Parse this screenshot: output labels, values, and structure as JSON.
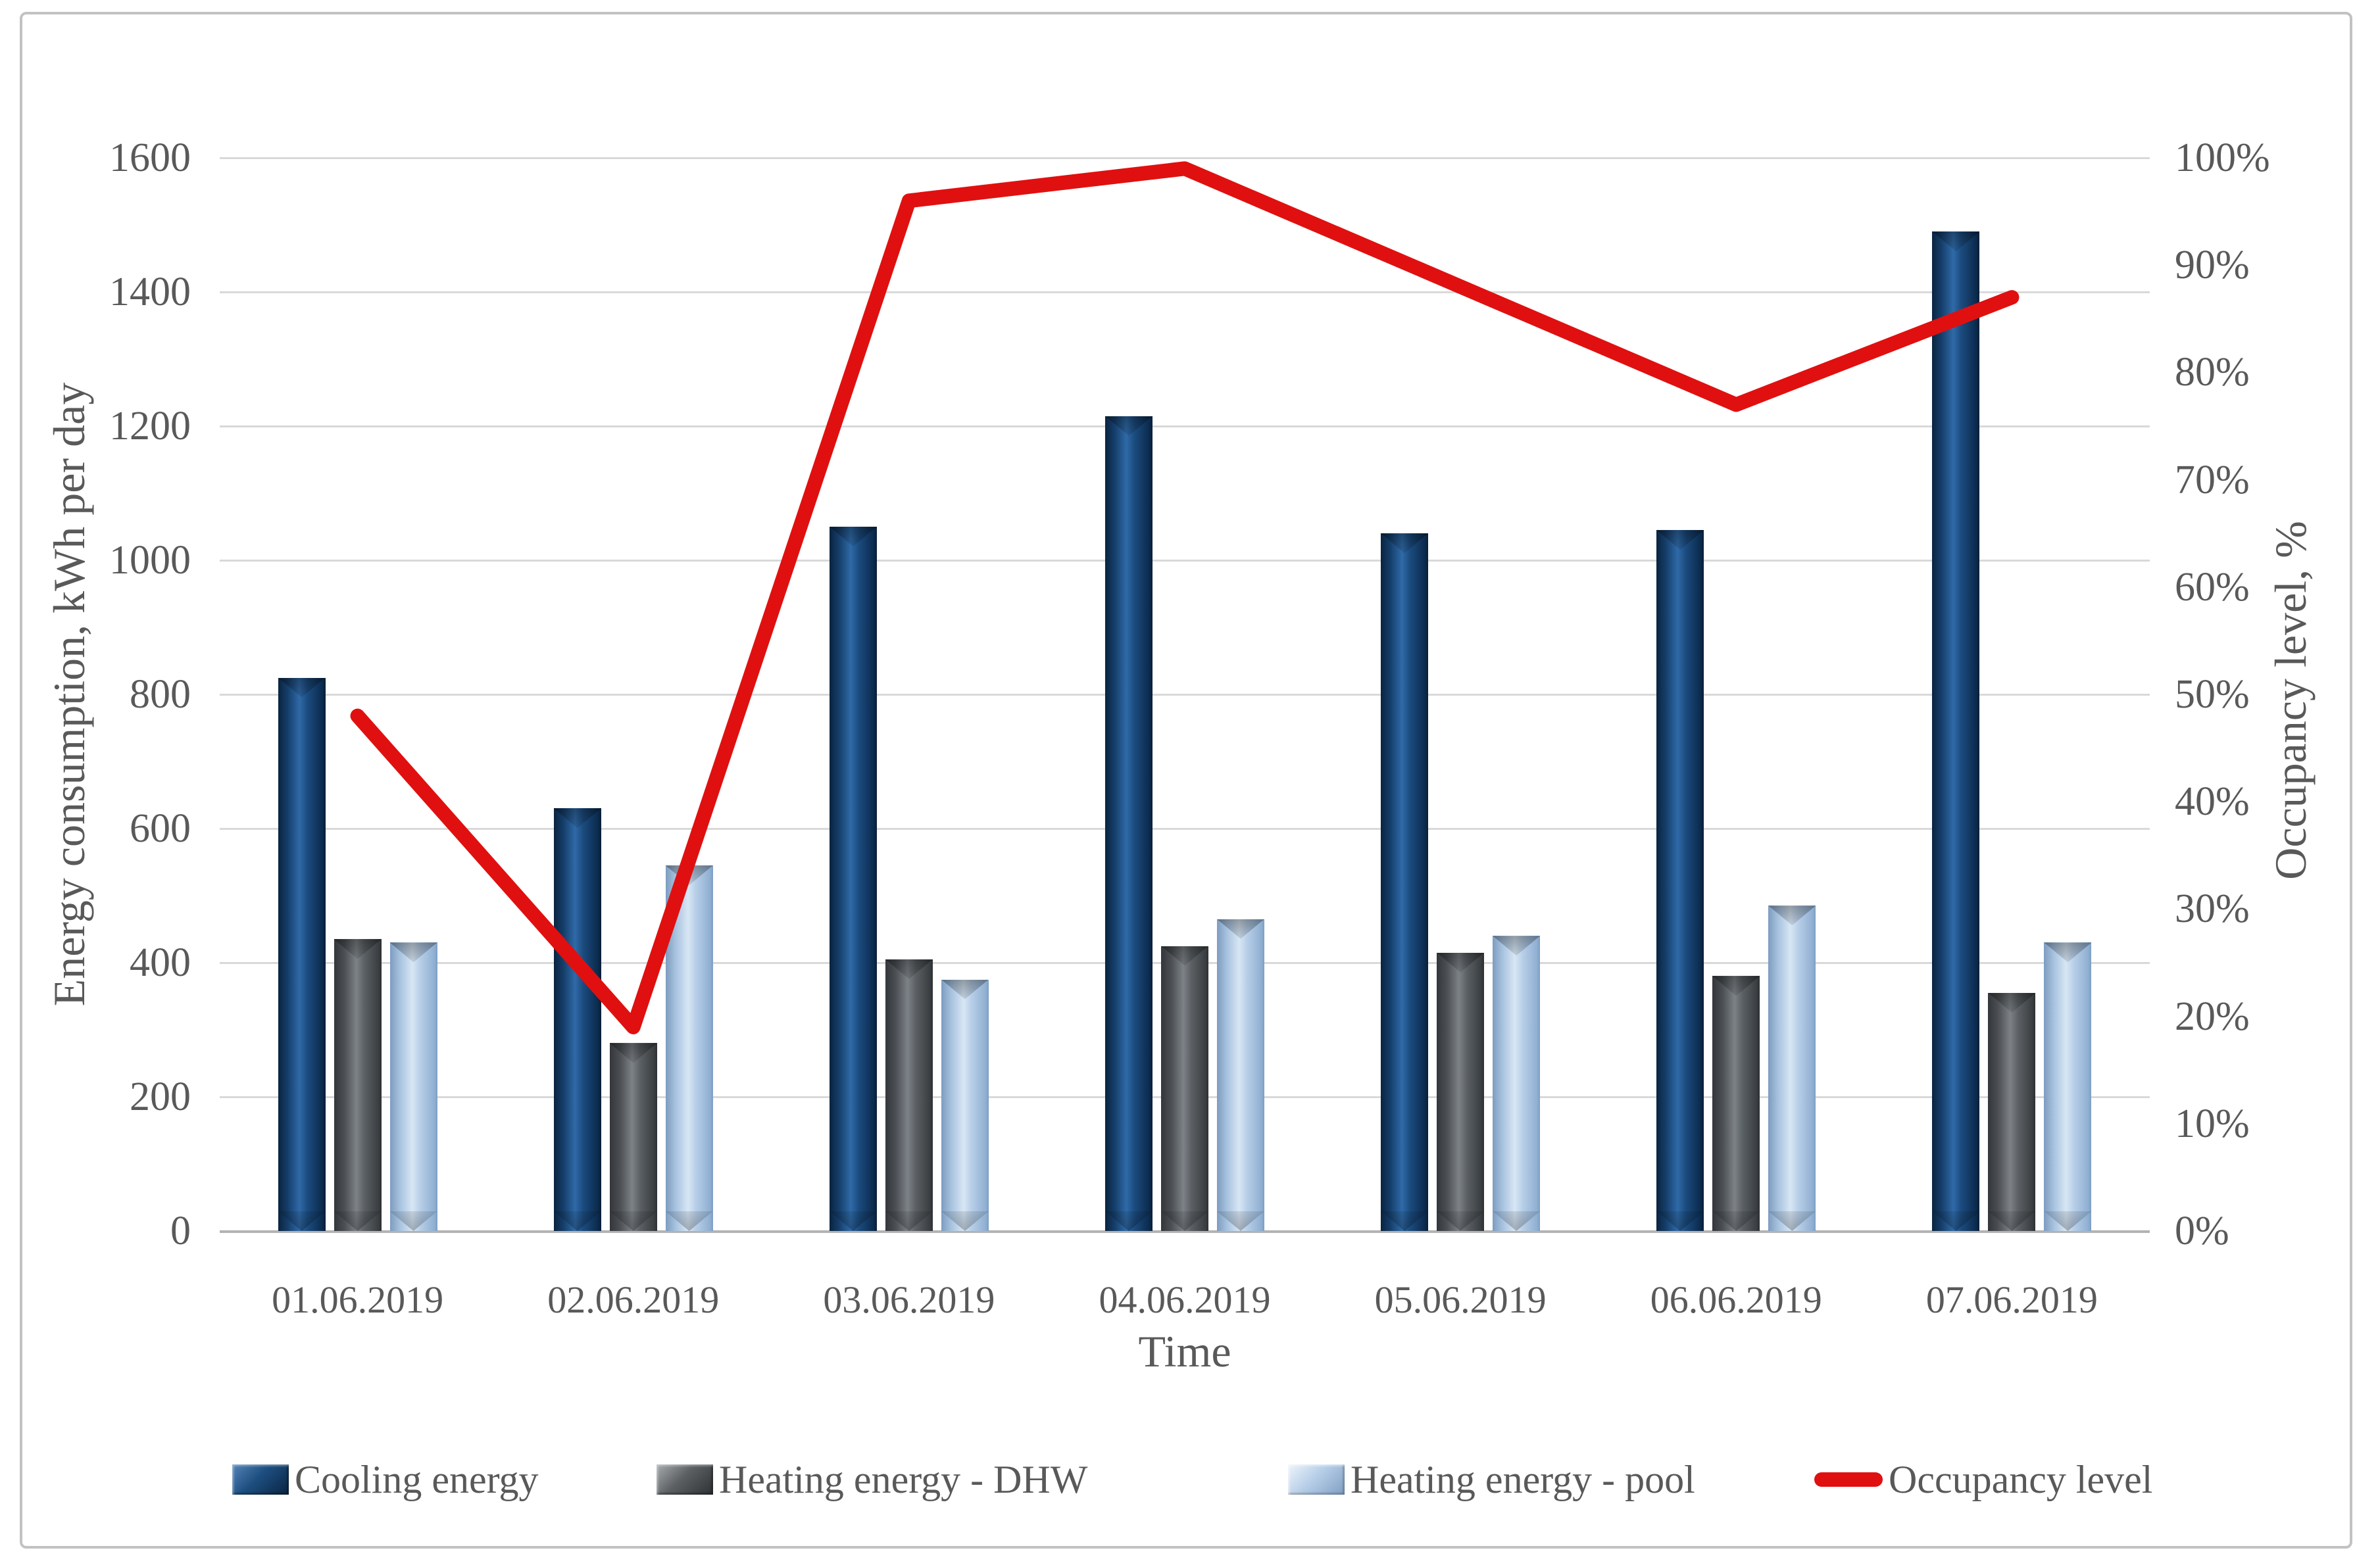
{
  "figure": {
    "background": "#ffffff",
    "border_color": "#c2c2c2",
    "text_color": "#595959",
    "gridline_color": "#d9d9d9"
  },
  "chart_data": {
    "type": "combo-bar-line",
    "categories": [
      "01.06.2019",
      "02.06.2019",
      "03.06.2019",
      "04.06.2019",
      "05.06.2019",
      "06.06.2019",
      "07.06.2019"
    ],
    "series": [
      {
        "name": "Cooling energy",
        "type": "bar",
        "axis": "left",
        "color": "#1b4a7a",
        "values": [
          825,
          630,
          1050,
          1215,
          1040,
          1045,
          1490
        ]
      },
      {
        "name": "Heating energy - DHW",
        "type": "bar",
        "axis": "left",
        "color": "#595959",
        "values": [
          435,
          280,
          405,
          425,
          415,
          380,
          355
        ]
      },
      {
        "name": "Heating energy - pool",
        "type": "bar",
        "axis": "left",
        "color": "#b8cce4",
        "values": [
          430,
          545,
          375,
          465,
          440,
          485,
          430
        ]
      },
      {
        "name": "Occupancy level",
        "type": "line",
        "axis": "right",
        "color": "#e01010",
        "values_percent": [
          48,
          19,
          96,
          99,
          88,
          77,
          87
        ]
      }
    ],
    "left_axis": {
      "title": "Energy consumption, kWh per day",
      "min": 0,
      "max": 1600,
      "step": 200,
      "ticks": [
        "0",
        "200",
        "400",
        "600",
        "800",
        "1000",
        "1200",
        "1400",
        "1600"
      ]
    },
    "right_axis": {
      "title": "Occupancy level, %",
      "min": 0,
      "max": 100,
      "step": 10,
      "ticks": [
        "0%",
        "10%",
        "20%",
        "30%",
        "40%",
        "50%",
        "60%",
        "70%",
        "80%",
        "90%",
        "100%"
      ]
    },
    "x_axis": {
      "title": "Time"
    },
    "grid": true,
    "legend_position": "bottom"
  },
  "legend": {
    "items": [
      {
        "label": "Cooling energy",
        "marker": "bar-swatch",
        "color": "#1b4a7a"
      },
      {
        "label": "Heating energy - DHW",
        "marker": "bar-swatch",
        "color": "#595959"
      },
      {
        "label": "Heating energy - pool",
        "marker": "bar-swatch",
        "color": "#b8cce4"
      },
      {
        "label": "Occupancy level",
        "marker": "line-swatch",
        "color": "#e01010"
      }
    ]
  }
}
